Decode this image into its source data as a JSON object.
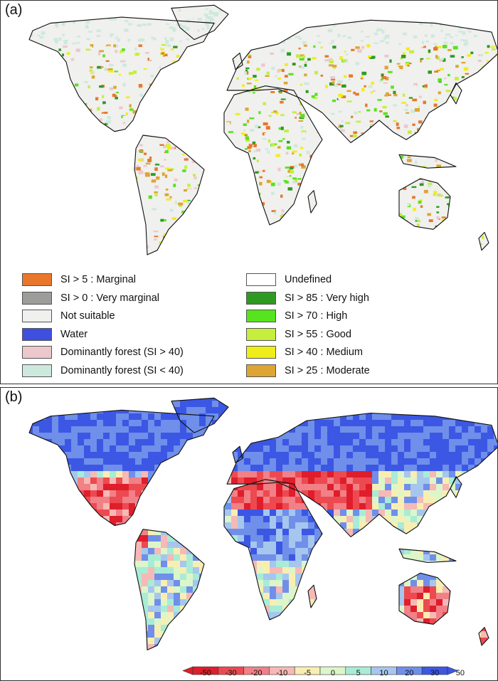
{
  "panel_a": {
    "label": "(a)",
    "legend_left": [
      {
        "text": "SI > 5 : Marginal",
        "color": "#e8772c"
      },
      {
        "text": "SI > 0 : Very marginal",
        "color": "#9c9c9a"
      },
      {
        "text": "Not suitable",
        "color": "#f0f0ee"
      },
      {
        "text": "Water",
        "color": "#3f4fe0"
      },
      {
        "text": "Dominantly forest (SI > 40)",
        "color": "#ecc8cc"
      },
      {
        "text": "Dominantly forest (SI < 40)",
        "color": "#cde9dd"
      }
    ],
    "legend_right": [
      {
        "text": "Undefined",
        "color": "#ffffff"
      },
      {
        "text": "SI > 85 : Very high",
        "color": "#2e9a22"
      },
      {
        "text": "SI > 70 : High",
        "color": "#57e31e"
      },
      {
        "text": "SI > 55 : Good",
        "color": "#c6ee3c"
      },
      {
        "text": "SI > 40 : Medium",
        "color": "#f0ee1a"
      },
      {
        "text": "SI > 25 : Moderate",
        "color": "#dea534"
      }
    ]
  },
  "panel_b": {
    "label": "(b)",
    "colorbar": {
      "ticks": [
        "-50",
        "-30",
        "-20",
        "-10",
        "-5",
        "0",
        "5",
        "10",
        "20",
        "30",
        "50"
      ],
      "colors": [
        "#e01d2b",
        "#ec4a50",
        "#f18087",
        "#f6b9b5",
        "#f9eeb2",
        "#dcf6c9",
        "#a8ecd6",
        "#a6c6ee",
        "#6f8fea",
        "#3c57e4"
      ]
    }
  }
}
